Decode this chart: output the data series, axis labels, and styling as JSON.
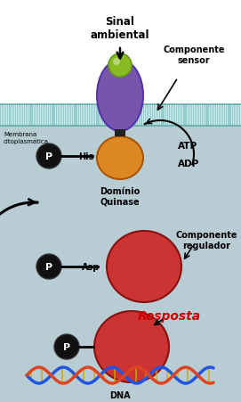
{
  "purple_body_color": "#7755aa",
  "green_dot_color": "#88bb22",
  "orange_kinase_color": "#dd8822",
  "red_regulator_color": "#cc3333",
  "black_circle_color": "#111111",
  "red_text": "#cc0000",
  "membrane_top_color": "#aad8d8",
  "membrane_bot_color": "#88c0c0",
  "cytoplasm_color": "#b8ccd4",
  "white_bg": "#ffffff",
  "text_sinal": "Sinal\nambiental",
  "text_componente_sensor": "Componente\nsensor",
  "text_membrana": "Membrana\ncitoplasmática",
  "text_his": "His",
  "text_dominio": "Domínio\nQuinase",
  "text_atp": "ATP",
  "text_adp": "ADP",
  "text_asp": "Asp",
  "text_componente_regulador": "Componente\nregulador",
  "text_resposta": "Resposta",
  "text_dna": "DNA",
  "text_p": "P",
  "fig_width": 2.71,
  "fig_height": 4.52,
  "dpi": 100
}
